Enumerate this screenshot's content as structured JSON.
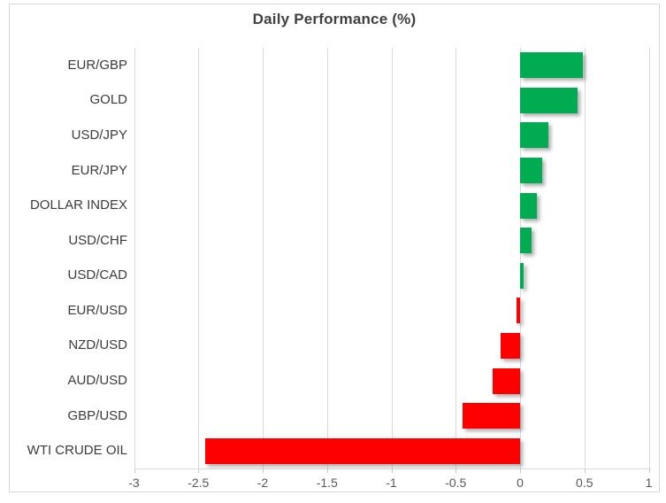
{
  "chart_data": {
    "type": "bar",
    "orientation": "horizontal",
    "title": "Daily Performance (%)",
    "categories": [
      "EUR/GBP",
      "GOLD",
      "USD/JPY",
      "EUR/JPY",
      "DOLLAR INDEX",
      "USD/CHF",
      "USD/CAD",
      "EUR/USD",
      "NZD/USD",
      "AUD/USD",
      "GBP/USD",
      "WTI CRUDE OIL"
    ],
    "values": [
      0.49,
      0.45,
      0.22,
      0.17,
      0.13,
      0.09,
      0.03,
      -0.03,
      -0.15,
      -0.21,
      -0.45,
      -2.45
    ],
    "xlim": [
      -3,
      1
    ],
    "x_ticks": [
      -3,
      -2.5,
      -2,
      -1.5,
      -1,
      -0.5,
      0,
      0.5,
      1
    ],
    "x_tick_labels": [
      "-3",
      "-2.5",
      "-2",
      "-1.5",
      "-1",
      "-0.5",
      "0",
      "0.5",
      "1"
    ],
    "grid": true,
    "legend": false,
    "colors": {
      "positive": "#00AB51",
      "negative": "#FF0000",
      "gridline": "#D9D9D9",
      "border": "#D7D7D7",
      "title_text": "#404040",
      "category_text": "#3B3B3B",
      "tick_text": "#595959",
      "background": "#FFFFFF"
    }
  }
}
